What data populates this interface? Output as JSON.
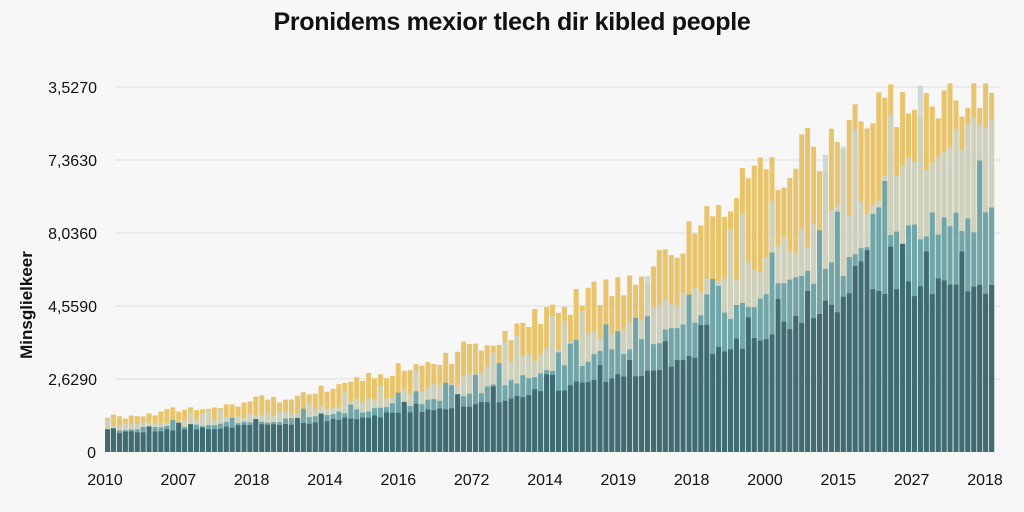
{
  "chart_data": {
    "type": "bar",
    "stacked": true,
    "title": "Pronidems mexior tlech dir kibled people",
    "ylabel": "Minsglielkeer",
    "xlabel": "",
    "y_tick_labels": [
      "0",
      "2,6290",
      "4,5590",
      "8,0360",
      "7,3630",
      "3,5270"
    ],
    "x_tick_labels": [
      "2010",
      "2007",
      "2018",
      "2014",
      "2016",
      "2072",
      "2014",
      "2019",
      "2018",
      "2000",
      "2015",
      "2027",
      "2018"
    ],
    "grid": true,
    "legend": "none",
    "value_units": "gridline levels (0 = baseline, 5 = top tick)",
    "x_positions": [
      0,
      0.22,
      0.39,
      0.5,
      0.61,
      0.72,
      0.84,
      0.95,
      1.0
    ],
    "series": [
      {
        "color": "#3f6c72",
        "values": [
          0.25,
          0.4,
          0.6,
          0.85,
          1.1,
          1.5,
          2.1,
          2.3,
          2.3
        ]
      },
      {
        "color": "#70a5aa",
        "values": [
          0.3,
          0.45,
          0.75,
          1.1,
          1.5,
          2.0,
          2.6,
          3.2,
          3.2
        ]
      },
      {
        "color": "#c8d3cb",
        "values": [
          0.35,
          0.55,
          0.95,
          1.4,
          1.85,
          2.5,
          3.3,
          4.3,
          4.4
        ]
      },
      {
        "color": "#e8c46c",
        "values": [
          0.47,
          0.78,
          1.33,
          1.9,
          2.5,
          3.6,
          4.4,
          4.96,
          5.0
        ]
      }
    ]
  }
}
